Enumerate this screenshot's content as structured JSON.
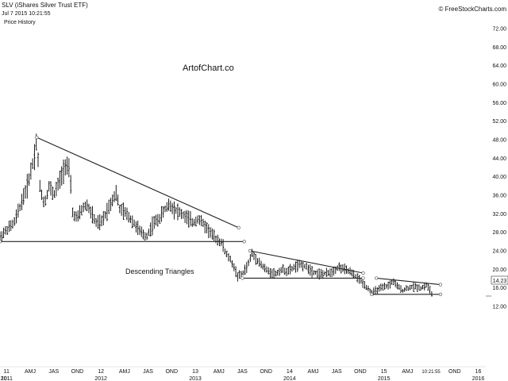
{
  "header": {
    "symbol_line": "SLV (iShares Silver Trust ETF)",
    "timestamp": "Jul 7 2015 10:21:55",
    "subtitle": "Price History",
    "copyright": "© FreeStockCharts.com"
  },
  "chart_data": {
    "type": "ohlc-bar",
    "ylim": [
      12,
      72
    ],
    "ylabel": "",
    "xlabel": "",
    "y_ticks": [
      "72.00",
      "68.00",
      "64.00",
      "60.00",
      "56.00",
      "52.00",
      "48.00",
      "44.00",
      "40.00",
      "36.00",
      "32.00",
      "28.00",
      "24.00",
      "20.00",
      "16.00",
      "12.00"
    ],
    "y_tick_values": [
      72,
      68,
      64,
      60,
      56,
      52,
      48,
      44,
      40,
      36,
      32,
      28,
      24,
      20,
      16,
      12
    ],
    "last_price": "14.23",
    "last_price_value": 14.23,
    "x_ticks": [
      {
        "label": "11",
        "year": "2011",
        "t": 2011.0
      },
      {
        "label": "AMJ",
        "year": "",
        "t": 2011.25
      },
      {
        "label": "JAS",
        "year": "",
        "t": 2011.5
      },
      {
        "label": "OND",
        "year": "",
        "t": 2011.75
      },
      {
        "label": "12",
        "year": "2012",
        "t": 2012.0
      },
      {
        "label": "AMJ",
        "year": "",
        "t": 2012.25
      },
      {
        "label": "JAS",
        "year": "",
        "t": 2012.5
      },
      {
        "label": "OND",
        "year": "",
        "t": 2012.75
      },
      {
        "label": "13",
        "year": "2013",
        "t": 2013.0
      },
      {
        "label": "AMJ",
        "year": "",
        "t": 2013.25
      },
      {
        "label": "JAS",
        "year": "",
        "t": 2013.5
      },
      {
        "label": "OND",
        "year": "",
        "t": 2013.75
      },
      {
        "label": "14",
        "year": "2014",
        "t": 2014.0
      },
      {
        "label": "AMJ",
        "year": "",
        "t": 2014.25
      },
      {
        "label": "JAS",
        "year": "",
        "t": 2014.5
      },
      {
        "label": "OND",
        "year": "",
        "t": 2014.75
      },
      {
        "label": "15",
        "year": "2015",
        "t": 2015.0
      },
      {
        "label": "AMJ",
        "year": "",
        "t": 2015.25
      },
      {
        "label": "10:21:55",
        "year": "",
        "t": 2015.5
      },
      {
        "label": "OND",
        "year": "",
        "t": 2015.75
      },
      {
        "label": "16",
        "year": "2016",
        "t": 2016.0
      }
    ],
    "year_marker_left": "10",
    "xlim": [
      2010.93,
      2016.08
    ],
    "price_path": [
      [
        2010.93,
        27
      ],
      [
        2011.0,
        28.5
      ],
      [
        2011.08,
        30
      ],
      [
        2011.15,
        34
      ],
      [
        2011.22,
        38
      ],
      [
        2011.3,
        45
      ],
      [
        2011.32,
        48.5
      ],
      [
        2011.35,
        38
      ],
      [
        2011.4,
        34
      ],
      [
        2011.45,
        38
      ],
      [
        2011.5,
        36
      ],
      [
        2011.58,
        40
      ],
      [
        2011.63,
        43
      ],
      [
        2011.67,
        41
      ],
      [
        2011.7,
        32
      ],
      [
        2011.75,
        31
      ],
      [
        2011.8,
        33
      ],
      [
        2011.85,
        34
      ],
      [
        2011.9,
        32
      ],
      [
        2011.95,
        30
      ],
      [
        2012.0,
        30
      ],
      [
        2012.05,
        32
      ],
      [
        2012.12,
        35
      ],
      [
        2012.16,
        36.5
      ],
      [
        2012.2,
        33
      ],
      [
        2012.27,
        32
      ],
      [
        2012.35,
        30
      ],
      [
        2012.42,
        28
      ],
      [
        2012.48,
        27
      ],
      [
        2012.52,
        28.5
      ],
      [
        2012.56,
        30
      ],
      [
        2012.62,
        31
      ],
      [
        2012.68,
        33
      ],
      [
        2012.72,
        34
      ],
      [
        2012.78,
        33
      ],
      [
        2012.85,
        32
      ],
      [
        2012.92,
        31
      ],
      [
        2012.98,
        30
      ],
      [
        2013.03,
        31
      ],
      [
        2013.08,
        30
      ],
      [
        2013.14,
        28.5
      ],
      [
        2013.2,
        27
      ],
      [
        2013.26,
        26
      ],
      [
        2013.29,
        25.5
      ],
      [
        2013.32,
        23.5
      ],
      [
        2013.36,
        22.5
      ],
      [
        2013.4,
        21
      ],
      [
        2013.45,
        18.5
      ],
      [
        2013.5,
        19
      ],
      [
        2013.56,
        21
      ],
      [
        2013.6,
        23.5
      ],
      [
        2013.64,
        22.5
      ],
      [
        2013.68,
        21.5
      ],
      [
        2013.72,
        20.5
      ],
      [
        2013.78,
        19.5
      ],
      [
        2013.85,
        19
      ],
      [
        2013.92,
        20
      ],
      [
        2013.98,
        19.5
      ],
      [
        2014.05,
        20.5
      ],
      [
        2014.12,
        21
      ],
      [
        2014.18,
        20.5
      ],
      [
        2014.25,
        19.5
      ],
      [
        2014.32,
        19
      ],
      [
        2014.38,
        19
      ],
      [
        2014.45,
        19.5
      ],
      [
        2014.52,
        20.5
      ],
      [
        2014.58,
        20
      ],
      [
        2014.64,
        19.5
      ],
      [
        2014.7,
        18.5
      ],
      [
        2014.78,
        17
      ],
      [
        2014.85,
        15.5
      ],
      [
        2014.88,
        15
      ],
      [
        2014.92,
        15.5
      ],
      [
        2014.98,
        16
      ],
      [
        2015.05,
        16.5
      ],
      [
        2015.1,
        17.5
      ],
      [
        2015.13,
        16.5
      ],
      [
        2015.2,
        15.5
      ],
      [
        2015.26,
        16
      ],
      [
        2015.32,
        16.3
      ],
      [
        2015.4,
        16
      ],
      [
        2015.45,
        16.6
      ],
      [
        2015.49,
        15.5
      ],
      [
        2015.51,
        14.5
      ]
    ],
    "annotations": [
      {
        "text": "ArtofChart.co",
        "kind": "watermark"
      },
      {
        "text": "Descending Triangles",
        "kind": "label"
      }
    ],
    "trendlines": [
      {
        "from": [
          2011.32,
          48.5
        ],
        "to": [
          2013.46,
          29
        ]
      },
      {
        "from": [
          2010.93,
          26
        ],
        "to": [
          2013.52,
          26
        ]
      },
      {
        "from": [
          2013.58,
          24
        ],
        "to": [
          2014.78,
          19.2
        ]
      },
      {
        "from": [
          2013.5,
          18.1
        ],
        "to": [
          2014.78,
          18.1
        ]
      },
      {
        "from": [
          2014.92,
          18.1
        ],
        "to": [
          2015.6,
          16.7
        ]
      },
      {
        "from": [
          2014.87,
          14.6
        ],
        "to": [
          2015.6,
          14.6
        ]
      }
    ]
  }
}
